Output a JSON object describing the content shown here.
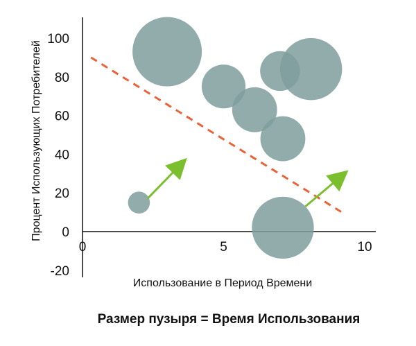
{
  "chart_data": {
    "type": "scatter",
    "subtype": "bubble",
    "xlabel": "Использование в Период Времени",
    "ylabel": "Процент Использующих Потребителей",
    "xlim": [
      0,
      10
    ],
    "ylim": [
      -20,
      110
    ],
    "x_ticks": [
      0,
      5,
      10
    ],
    "y_ticks": [
      -20,
      0,
      20,
      40,
      60,
      80,
      100
    ],
    "grid": false,
    "bubble_color": "#7f9e9c",
    "trend_color": "#e8623a",
    "arrow_color": "#7bbf2e",
    "bubbles": [
      {
        "x": 3.0,
        "y": 93,
        "size": 1.0
      },
      {
        "x": 5.0,
        "y": 75,
        "size": 0.4
      },
      {
        "x": 6.1,
        "y": 63,
        "size": 0.42
      },
      {
        "x": 7.0,
        "y": 83,
        "size": 0.33
      },
      {
        "x": 8.1,
        "y": 84,
        "size": 0.8
      },
      {
        "x": 7.1,
        "y": 48,
        "size": 0.42
      },
      {
        "x": 2.0,
        "y": 15,
        "size": 0.1
      },
      {
        "x": 7.1,
        "y": 2,
        "size": 0.8
      }
    ],
    "trend_line": {
      "x": [
        0.3,
        9.3
      ],
      "y": [
        90,
        9
      ]
    },
    "arrows": [
      {
        "from": [
          2.3,
          17
        ],
        "to": [
          3.5,
          35
        ]
      },
      {
        "from": [
          7.9,
          13
        ],
        "to": [
          9.2,
          29
        ]
      }
    ]
  },
  "caption": "Размер пузыря = Время Использования"
}
